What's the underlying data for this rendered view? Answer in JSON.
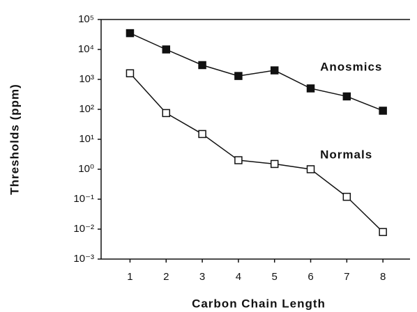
{
  "chart_data": {
    "type": "line",
    "xlabel": "Carbon Chain Length",
    "ylabel": "Thresholds (ppm)",
    "x": [
      1,
      2,
      3,
      4,
      5,
      6,
      7,
      8
    ],
    "series": [
      {
        "name": "Anosmics",
        "color": "#111111",
        "marker": "filled-square",
        "values": [
          35000,
          10000,
          3000,
          1300,
          2000,
          500,
          270,
          90
        ]
      },
      {
        "name": "Normals",
        "color": "#111111",
        "marker": "open-square",
        "values": [
          1600,
          75,
          15,
          2,
          1.5,
          1,
          0.12,
          0.008
        ]
      }
    ],
    "xlim": [
      0.2,
      8.75
    ],
    "xticks": [
      1,
      2,
      3,
      4,
      5,
      6,
      7,
      8
    ],
    "ylim": [
      0.001,
      100000
    ],
    "yscale": "log",
    "yticks": [
      {
        "value": 0.001,
        "label": "10⁻³"
      },
      {
        "value": 0.01,
        "label": "10⁻²"
      },
      {
        "value": 0.1,
        "label": "10⁻¹"
      },
      {
        "value": 1,
        "label": "10⁰"
      },
      {
        "value": 10,
        "label": "10¹"
      },
      {
        "value": 100,
        "label": "10²"
      },
      {
        "value": 1000,
        "label": "10³"
      },
      {
        "value": 10000,
        "label": "10⁴"
      },
      {
        "value": 100000,
        "label": "10⁵"
      }
    ]
  }
}
